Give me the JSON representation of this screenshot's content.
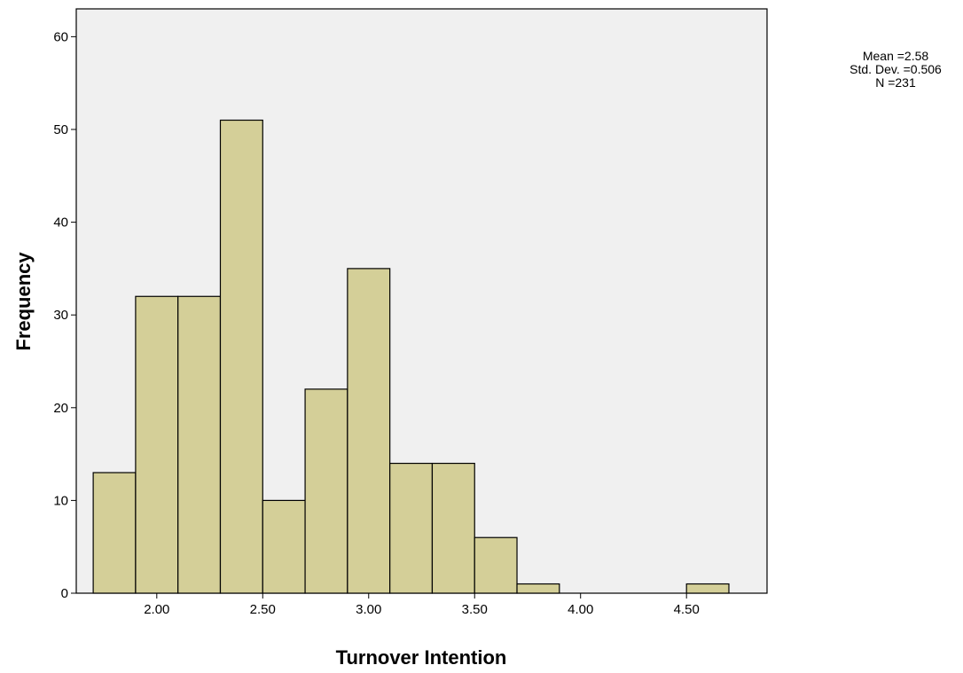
{
  "chart_data": {
    "type": "bar",
    "xlabel": "Turnover Intention",
    "ylabel": "Frequency",
    "xlim": [
      1.62,
      4.88
    ],
    "ylim": [
      0,
      63
    ],
    "x_ticks": [
      "2.00",
      "2.50",
      "3.00",
      "3.50",
      "4.00",
      "4.50"
    ],
    "y_ticks": [
      "0",
      "10",
      "20",
      "30",
      "40",
      "50",
      "60"
    ],
    "bin_width": 0.2,
    "bins": [
      {
        "start": 1.7,
        "end": 1.9,
        "count": 13
      },
      {
        "start": 1.9,
        "end": 2.1,
        "count": 32
      },
      {
        "start": 2.1,
        "end": 2.3,
        "count": 32
      },
      {
        "start": 2.3,
        "end": 2.5,
        "count": 51
      },
      {
        "start": 2.5,
        "end": 2.7,
        "count": 10
      },
      {
        "start": 2.7,
        "end": 2.9,
        "count": 22
      },
      {
        "start": 2.9,
        "end": 3.1,
        "count": 35
      },
      {
        "start": 3.1,
        "end": 3.3,
        "count": 14
      },
      {
        "start": 3.3,
        "end": 3.5,
        "count": 14
      },
      {
        "start": 3.5,
        "end": 3.7,
        "count": 6
      },
      {
        "start": 3.7,
        "end": 3.9,
        "count": 1
      },
      {
        "start": 3.9,
        "end": 4.1,
        "count": 0
      },
      {
        "start": 4.1,
        "end": 4.3,
        "count": 0
      },
      {
        "start": 4.3,
        "end": 4.5,
        "count": 0
      },
      {
        "start": 4.5,
        "end": 4.7,
        "count": 1
      }
    ],
    "bar_color": "#d4cf98",
    "plot_background": "#f0f0f0",
    "grid": false,
    "legend": "none"
  },
  "stats": {
    "mean": "Mean =2.58",
    "std_dev": "Std. Dev. =0.506",
    "n": "N =231"
  }
}
